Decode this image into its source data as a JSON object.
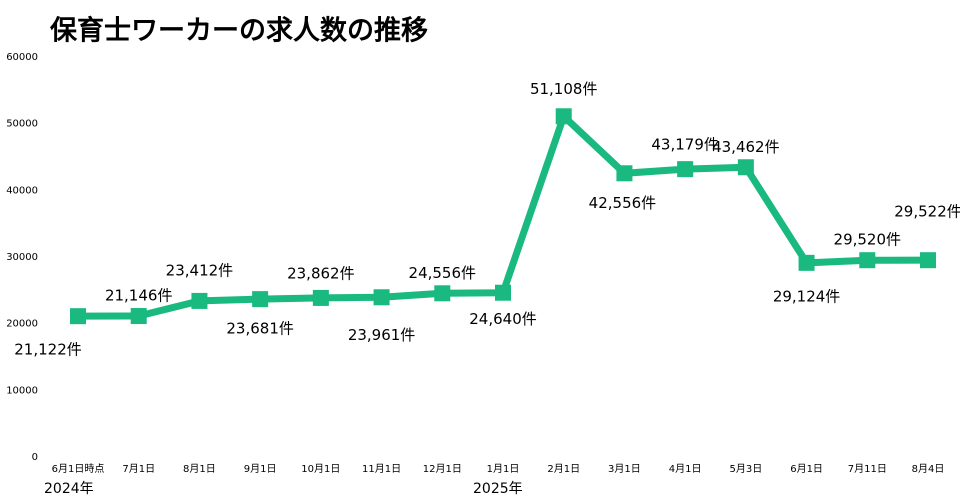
{
  "chart_data": {
    "type": "line",
    "title": "保育士ワーカーの求人数の推移",
    "categories": [
      "6月1日時点",
      "7月1日",
      "8月1日",
      "9月1日",
      "10月1日",
      "11月1日",
      "12月1日",
      "1月1日",
      "2月1日",
      "3月1日",
      "4月1日",
      "5月3日",
      "6月1日",
      "7月11日",
      "8月4日"
    ],
    "values": [
      21122,
      21146,
      23412,
      23681,
      23862,
      23961,
      24556,
      24640,
      51108,
      42556,
      43179,
      43462,
      29124,
      29520,
      29522
    ],
    "value_labels": [
      "21,122件",
      "21,146件",
      "23,412件",
      "23,681件",
      "23,862件",
      "23,961件",
      "24,556件",
      "24,640件",
      "51,108件",
      "42,556件",
      "43,179件",
      "43,462件",
      "29,124件",
      "29,520件",
      "29,522件"
    ],
    "color": "#19b97f",
    "ylim": [
      0,
      60000
    ],
    "yticks": [
      0,
      10000,
      20000,
      30000,
      40000,
      50000,
      60000
    ],
    "grid": false,
    "annotations": [
      "2024年",
      "2025年"
    ]
  }
}
